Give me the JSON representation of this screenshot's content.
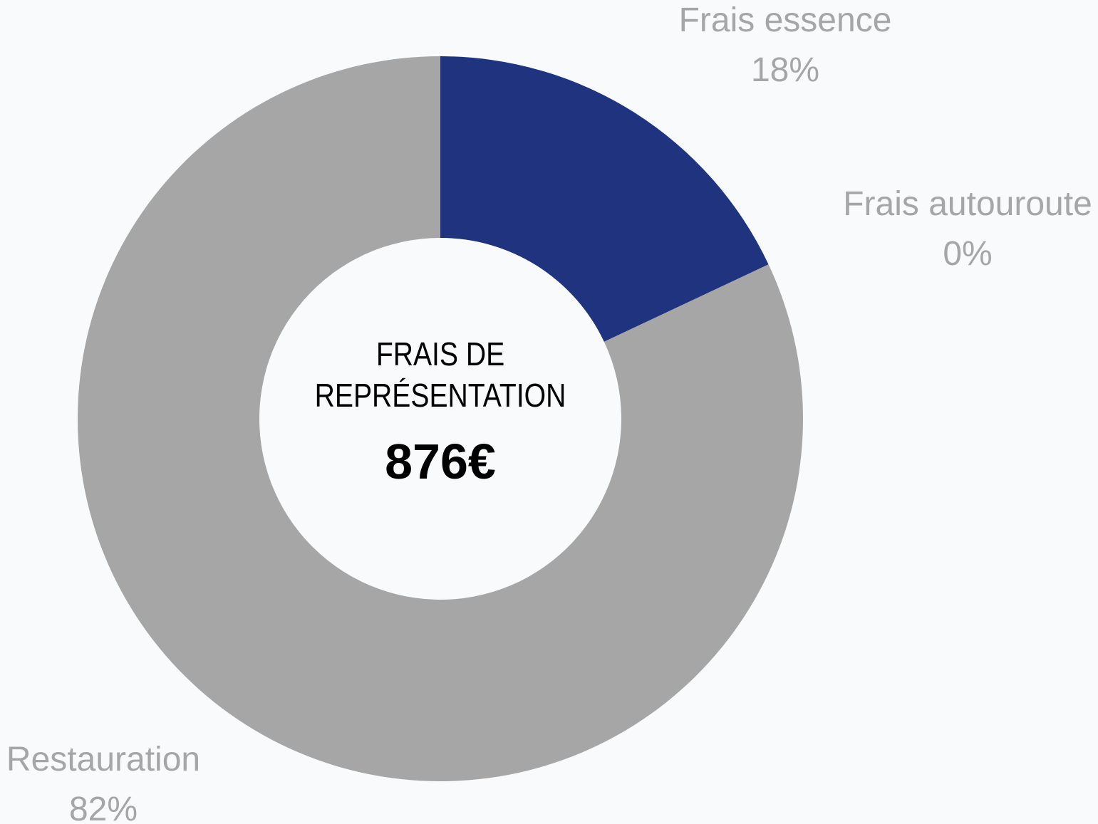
{
  "chart_data": {
    "type": "donut",
    "center_title": "FRAIS DE REPRÉSENTATION",
    "center_value": "876€",
    "categories": [
      "Frais essence",
      "Frais autouroute",
      "Restauration"
    ],
    "values": [
      18,
      0,
      82
    ],
    "value_labels": [
      "18%",
      "0%",
      "82%"
    ],
    "colors": [
      "#1f337f",
      "#5a6fb0",
      "#a6a6a6"
    ]
  }
}
